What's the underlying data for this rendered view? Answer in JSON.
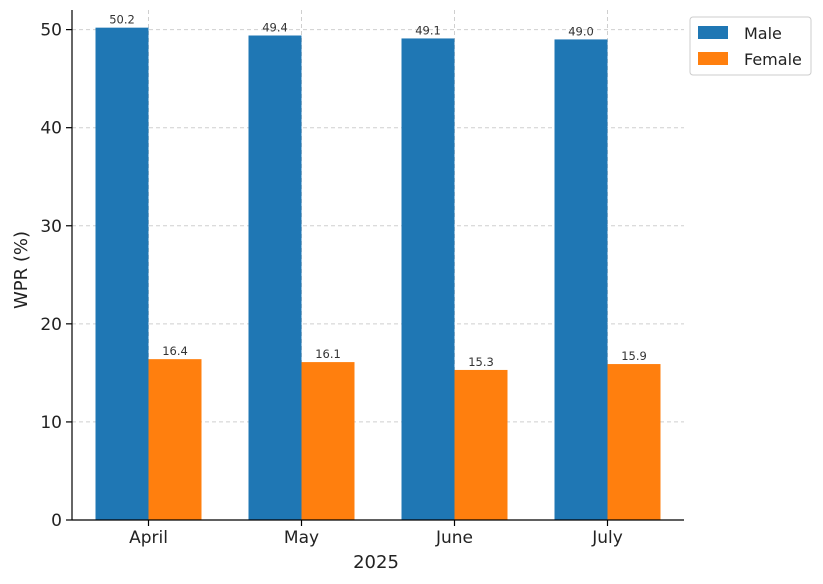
{
  "chart_data": {
    "type": "bar",
    "categories": [
      "April",
      "May",
      "June",
      "July"
    ],
    "series": [
      {
        "name": "Male",
        "values": [
          50.2,
          49.4,
          49.1,
          49.0
        ],
        "color": "#1f77b4"
      },
      {
        "name": "Female",
        "values": [
          16.4,
          16.1,
          15.3,
          15.9
        ],
        "color": "#ff7f0e"
      }
    ],
    "value_labels": {
      "Male": [
        "50.2",
        "49.4",
        "49.1",
        "49.0"
      ],
      "Female": [
        "16.4",
        "16.1",
        "15.3",
        "15.9"
      ]
    },
    "xlabel": "2025",
    "ylabel": "WPR (%)",
    "ylim": [
      0,
      52
    ],
    "yticks": [
      0,
      10,
      20,
      30,
      40,
      50
    ],
    "grid": true,
    "legend_position": "top-right"
  }
}
